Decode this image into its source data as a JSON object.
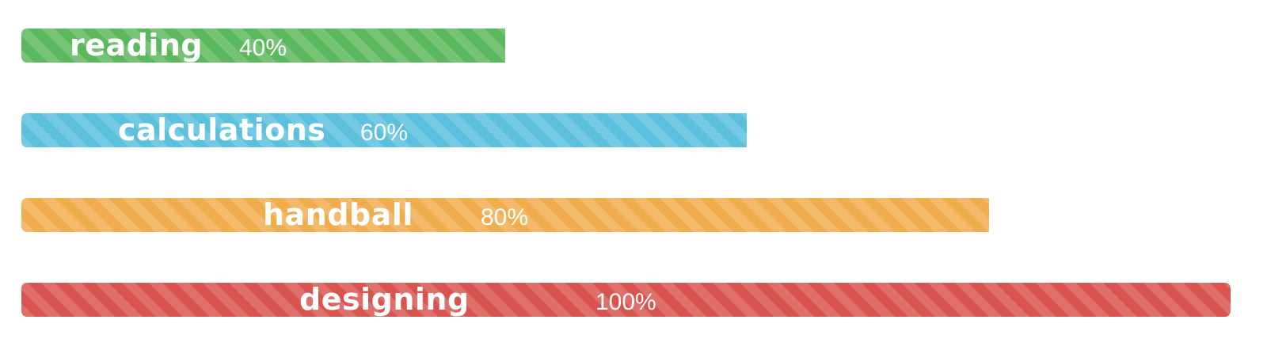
{
  "chart_data": {
    "type": "bar",
    "orientation": "horizontal",
    "categories": [
      "reading",
      "calculations",
      "handball",
      "designing"
    ],
    "values": [
      40,
      60,
      80,
      100
    ],
    "value_labels": [
      "40%",
      "60%",
      "80%",
      "100%"
    ],
    "xlim": [
      0,
      100
    ],
    "colors": [
      "#5cb85c",
      "#5bc0de",
      "#f0ad4e",
      "#d9534f"
    ],
    "style": "striped",
    "grid": false,
    "legend": "none"
  }
}
